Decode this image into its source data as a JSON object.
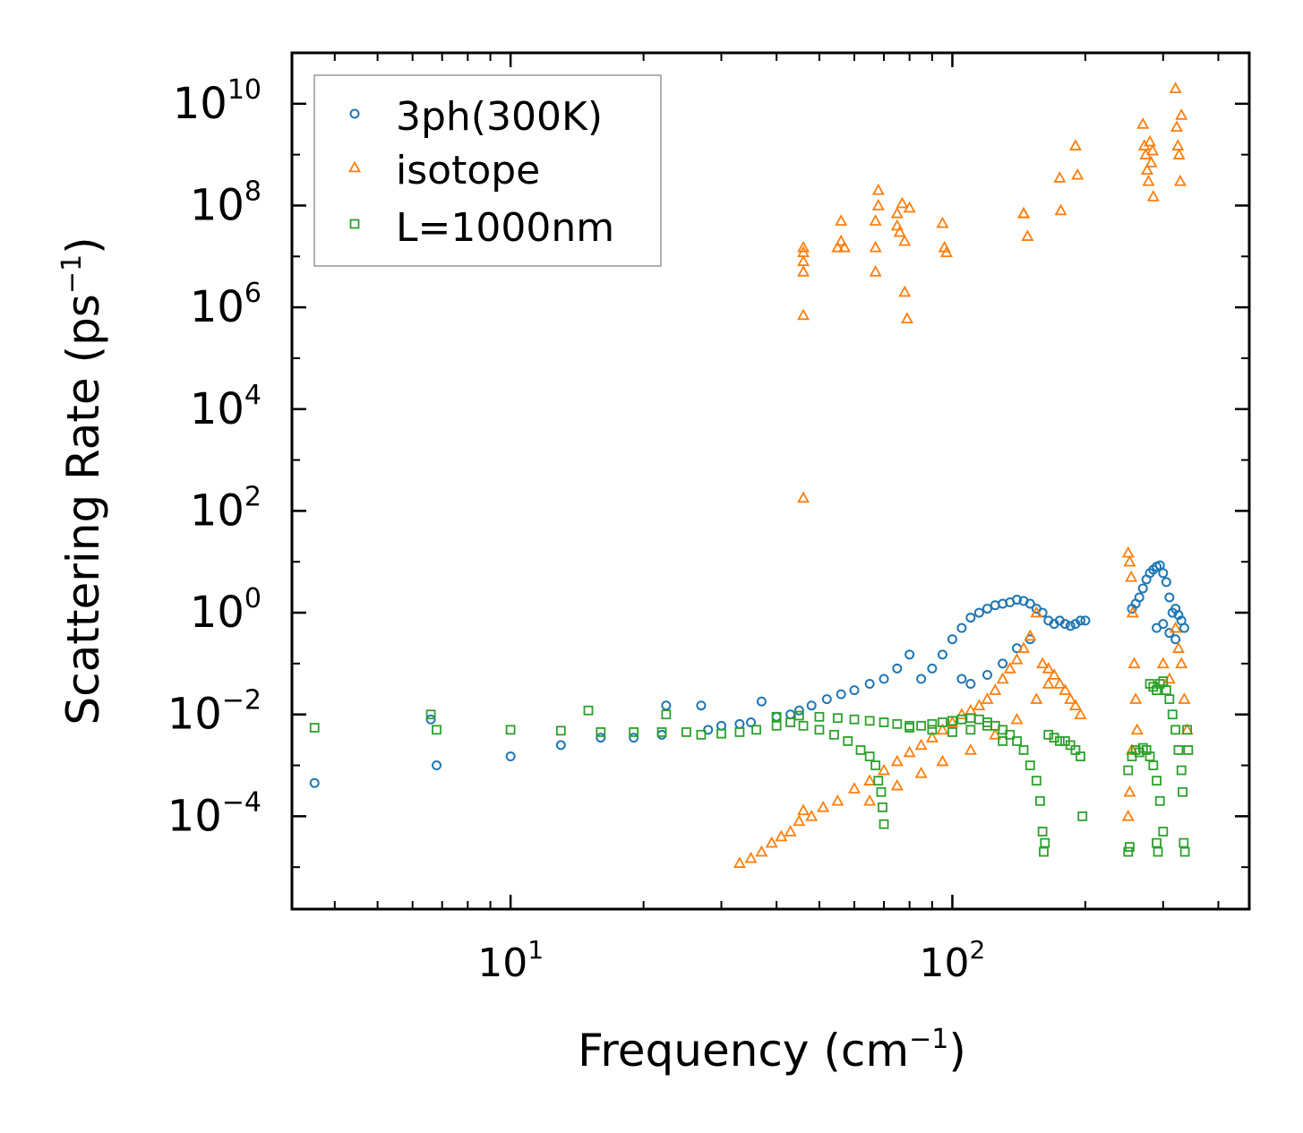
{
  "chart_data": {
    "type": "scatter",
    "xscale": "log",
    "yscale": "log",
    "xlim": [
      3.2,
      470
    ],
    "ylim": [
      1.5e-06,
      100000000000
    ],
    "xlabel": "Frequency (cm",
    "xlabel_sup": "−1",
    "xlabel_end": ")",
    "ylabel": "Scattering Rate (ps",
    "ylabel_sup": "−1",
    "ylabel_end": ")",
    "legend_position": "top-left",
    "x_ticks": [
      {
        "value": 10,
        "base": "10",
        "exp": "1"
      },
      {
        "value": 100,
        "base": "10",
        "exp": "2"
      }
    ],
    "y_ticks": [
      {
        "value": 0.0001,
        "base": "10",
        "exp": "−4"
      },
      {
        "value": 0.01,
        "base": "10",
        "exp": "−2"
      },
      {
        "value": 1,
        "base": "10",
        "exp": "0"
      },
      {
        "value": 100,
        "base": "10",
        "exp": "2"
      },
      {
        "value": 10000,
        "base": "10",
        "exp": "4"
      },
      {
        "value": 1000000,
        "base": "10",
        "exp": "6"
      },
      {
        "value": 100000000,
        "base": "10",
        "exp": "8"
      },
      {
        "value": 10000000000,
        "base": "10",
        "exp": "10"
      }
    ],
    "series": [
      {
        "name": "3ph(300K)",
        "marker": "circle",
        "color": "#1f77b4",
        "points": [
          [
            3.6,
            0.00045
          ],
          [
            6.6,
            0.008
          ],
          [
            6.8,
            0.001
          ],
          [
            10,
            0.0015
          ],
          [
            13,
            0.0025
          ],
          [
            16,
            0.0035
          ],
          [
            19,
            0.0035
          ],
          [
            22,
            0.004
          ],
          [
            22.5,
            0.015
          ],
          [
            27,
            0.015
          ],
          [
            28,
            0.005
          ],
          [
            30,
            0.006
          ],
          [
            33,
            0.0065
          ],
          [
            35,
            0.007
          ],
          [
            37,
            0.018
          ],
          [
            40,
            0.009
          ],
          [
            43,
            0.01
          ],
          [
            45,
            0.012
          ],
          [
            48,
            0.015
          ],
          [
            52,
            0.02
          ],
          [
            56,
            0.025
          ],
          [
            60,
            0.03
          ],
          [
            65,
            0.04
          ],
          [
            70,
            0.05
          ],
          [
            75,
            0.08
          ],
          [
            80,
            0.15
          ],
          [
            85,
            0.05
          ],
          [
            90,
            0.08
          ],
          [
            95,
            0.15
          ],
          [
            100,
            0.3
          ],
          [
            105,
            0.5
          ],
          [
            110,
            0.8
          ],
          [
            115,
            1.0
          ],
          [
            120,
            1.2
          ],
          [
            125,
            1.4
          ],
          [
            130,
            1.5
          ],
          [
            135,
            1.6
          ],
          [
            140,
            1.8
          ],
          [
            145,
            1.7
          ],
          [
            150,
            1.5
          ],
          [
            155,
            1.2
          ],
          [
            160,
            1.0
          ],
          [
            165,
            0.7
          ],
          [
            170,
            0.6
          ],
          [
            175,
            0.7
          ],
          [
            180,
            0.6
          ],
          [
            185,
            0.55
          ],
          [
            190,
            0.6
          ],
          [
            195,
            0.7
          ],
          [
            200,
            0.7
          ],
          [
            105,
            0.05
          ],
          [
            110,
            0.04
          ],
          [
            120,
            0.06
          ],
          [
            130,
            0.1
          ],
          [
            140,
            0.2
          ],
          [
            150,
            0.3
          ],
          [
            255,
            1.2
          ],
          [
            260,
            1.5
          ],
          [
            265,
            2.0
          ],
          [
            270,
            3.0
          ],
          [
            275,
            4.5
          ],
          [
            280,
            6.0
          ],
          [
            285,
            7.0
          ],
          [
            290,
            8.0
          ],
          [
            295,
            8.5
          ],
          [
            300,
            6.0
          ],
          [
            305,
            4.0
          ],
          [
            310,
            2.0
          ],
          [
            315,
            1.0
          ],
          [
            320,
            1.2
          ],
          [
            325,
            0.9
          ],
          [
            330,
            0.7
          ],
          [
            335,
            0.5
          ],
          [
            290,
            0.5
          ],
          [
            300,
            0.6
          ],
          [
            310,
            0.4
          ],
          [
            320,
            0.3
          ]
        ]
      },
      {
        "name": "isotope",
        "marker": "triangle",
        "color": "#ff7f0e",
        "points": [
          [
            33,
            1.2e-05
          ],
          [
            35,
            1.5e-05
          ],
          [
            37,
            2e-05
          ],
          [
            39,
            3e-05
          ],
          [
            41,
            4e-05
          ],
          [
            43,
            5e-05
          ],
          [
            45,
            8e-05
          ],
          [
            48,
            0.0001
          ],
          [
            51,
            0.00015
          ],
          [
            55,
            0.0002
          ],
          [
            60,
            0.00035
          ],
          [
            65,
            0.0005
          ],
          [
            70,
            0.0008
          ],
          [
            75,
            0.0012
          ],
          [
            80,
            0.0018
          ],
          [
            85,
            0.0025
          ],
          [
            90,
            0.0035
          ],
          [
            95,
            0.005
          ],
          [
            100,
            0.007
          ],
          [
            105,
            0.01
          ],
          [
            110,
            0.012
          ],
          [
            115,
            0.015
          ],
          [
            120,
            0.02
          ],
          [
            125,
            0.03
          ],
          [
            130,
            0.05
          ],
          [
            135,
            0.08
          ],
          [
            140,
            0.12
          ],
          [
            145,
            0.2
          ],
          [
            150,
            0.35
          ],
          [
            155,
            1.0
          ],
          [
            160,
            0.1
          ],
          [
            165,
            0.08
          ],
          [
            170,
            0.06
          ],
          [
            175,
            0.04
          ],
          [
            180,
            0.03
          ],
          [
            185,
            0.02
          ],
          [
            190,
            0.015
          ],
          [
            195,
            0.01
          ],
          [
            65,
            0.0002
          ],
          [
            75,
            0.0004
          ],
          [
            85,
            0.0007
          ],
          [
            95,
            0.0012
          ],
          [
            110,
            0.002
          ],
          [
            125,
            0.004
          ],
          [
            140,
            0.008
          ],
          [
            155,
            0.02
          ],
          [
            165,
            0.04
          ],
          [
            46,
            0.00013
          ],
          [
            250,
            15.0
          ],
          [
            252,
            10.0
          ],
          [
            254,
            5.0
          ],
          [
            256,
            1.0
          ],
          [
            258,
            0.1
          ],
          [
            260,
            0.02
          ],
          [
            262,
            0.005
          ],
          [
            250,
            0.0001
          ],
          [
            252,
            0.0003
          ],
          [
            255,
            0.002
          ],
          [
            300,
            0.1
          ],
          [
            310,
            0.05
          ],
          [
            320,
            0.5
          ],
          [
            325,
            0.2
          ],
          [
            330,
            0.1
          ],
          [
            335,
            0.02
          ],
          [
            340,
            0.005
          ],
          [
            46,
            180
          ],
          [
            46,
            700000
          ],
          [
            46,
            5000000
          ],
          [
            46,
            8000000
          ],
          [
            46,
            12000000
          ],
          [
            46,
            15000000
          ],
          [
            55,
            15000000
          ],
          [
            56,
            20000000
          ],
          [
            56,
            50000000
          ],
          [
            57,
            15000000
          ],
          [
            67,
            5000000
          ],
          [
            67,
            15000000
          ],
          [
            67,
            50000000
          ],
          [
            68,
            100000000
          ],
          [
            68,
            200000000
          ],
          [
            75,
            40000000
          ],
          [
            75,
            70000000
          ],
          [
            76,
            30000000
          ],
          [
            77,
            110000000
          ],
          [
            78,
            20000000
          ],
          [
            78,
            2000000
          ],
          [
            79,
            600000
          ],
          [
            80,
            90000000
          ],
          [
            95,
            45000000
          ],
          [
            96,
            15000000
          ],
          [
            97,
            12000000
          ],
          [
            145,
            70000000
          ],
          [
            148,
            25000000
          ],
          [
            145,
            70000000
          ],
          [
            175,
            350000000
          ],
          [
            176,
            80000000
          ],
          [
            190,
            1500000000
          ],
          [
            192,
            400000000
          ],
          [
            270,
            4000000000
          ],
          [
            272,
            1500000000
          ],
          [
            274,
            1000000000
          ],
          [
            276,
            500000000
          ],
          [
            278,
            300000000
          ],
          [
            280,
            1800000000
          ],
          [
            282,
            700000000
          ],
          [
            284,
            1200000000
          ],
          [
            285,
            150000000
          ],
          [
            320,
            20000000000
          ],
          [
            322,
            3500000000
          ],
          [
            324,
            1500000000
          ],
          [
            326,
            1000000000
          ],
          [
            328,
            300000000
          ],
          [
            330,
            6000000000
          ]
        ]
      },
      {
        "name": "L=1000nm",
        "marker": "square",
        "color": "#2ca02c",
        "points": [
          [
            3.6,
            0.0055
          ],
          [
            6.6,
            0.01
          ],
          [
            6.8,
            0.005
          ],
          [
            10,
            0.005
          ],
          [
            13,
            0.0048
          ],
          [
            15,
            0.012
          ],
          [
            16,
            0.0045
          ],
          [
            19,
            0.0045
          ],
          [
            22,
            0.0045
          ],
          [
            22.5,
            0.01
          ],
          [
            25,
            0.0045
          ],
          [
            27,
            0.004
          ],
          [
            30,
            0.0042
          ],
          [
            33,
            0.0045
          ],
          [
            36,
            0.005
          ],
          [
            40,
            0.006
          ],
          [
            43,
            0.007
          ],
          [
            46,
            0.006
          ],
          [
            50,
            0.005
          ],
          [
            54,
            0.004
          ],
          [
            58,
            0.003
          ],
          [
            62,
            0.002
          ],
          [
            65,
            0.0015
          ],
          [
            67,
            0.001
          ],
          [
            68,
            0.0005
          ],
          [
            69,
            0.0003
          ],
          [
            69.5,
            0.00015
          ],
          [
            70,
            7e-05
          ],
          [
            40,
            0.009
          ],
          [
            45,
            0.0095
          ],
          [
            50,
            0.009
          ],
          [
            55,
            0.0085
          ],
          [
            60,
            0.008
          ],
          [
            65,
            0.0075
          ],
          [
            70,
            0.007
          ],
          [
            75,
            0.0065
          ],
          [
            80,
            0.006
          ],
          [
            85,
            0.006
          ],
          [
            90,
            0.0065
          ],
          [
            95,
            0.007
          ],
          [
            100,
            0.0075
          ],
          [
            105,
            0.008
          ],
          [
            110,
            0.0085
          ],
          [
            115,
            0.008
          ],
          [
            120,
            0.007
          ],
          [
            125,
            0.006
          ],
          [
            130,
            0.005
          ],
          [
            135,
            0.004
          ],
          [
            140,
            0.003
          ],
          [
            145,
            0.002
          ],
          [
            150,
            0.001
          ],
          [
            155,
            0.0005
          ],
          [
            158,
            0.0002
          ],
          [
            160,
            5e-05
          ],
          [
            161,
            2e-05
          ],
          [
            162,
            3e-05
          ],
          [
            165,
            0.004
          ],
          [
            170,
            0.0035
          ],
          [
            175,
            0.003
          ],
          [
            180,
            0.003
          ],
          [
            185,
            0.0025
          ],
          [
            190,
            0.002
          ],
          [
            195,
            0.0015
          ],
          [
            197,
            0.0001
          ],
          [
            80,
            0.0055
          ],
          [
            90,
            0.005
          ],
          [
            100,
            0.0045
          ],
          [
            110,
            0.005
          ],
          [
            120,
            0.006
          ],
          [
            130,
            0.003
          ],
          [
            250,
            0.0008
          ],
          [
            255,
            0.0015
          ],
          [
            260,
            0.002
          ],
          [
            265,
            0.0018
          ],
          [
            270,
            0.0022
          ],
          [
            275,
            0.002
          ],
          [
            280,
            0.0015
          ],
          [
            285,
            0.001
          ],
          [
            290,
            0.0005
          ],
          [
            295,
            0.0002
          ],
          [
            300,
            5e-05
          ],
          [
            280,
            0.04
          ],
          [
            285,
            0.035
          ],
          [
            290,
            0.03
          ],
          [
            295,
            0.04
          ],
          [
            300,
            0.045
          ],
          [
            305,
            0.03
          ],
          [
            310,
            0.02
          ],
          [
            315,
            0.01
          ],
          [
            320,
            0.005
          ],
          [
            325,
            0.002
          ],
          [
            330,
            0.0008
          ],
          [
            332,
            0.0003
          ],
          [
            334,
            3e-05
          ],
          [
            336,
            2e-05
          ],
          [
            250,
            2e-05
          ],
          [
            252,
            2.5e-05
          ],
          [
            290,
            3e-05
          ],
          [
            292,
            2e-05
          ],
          [
            340,
            0.005
          ],
          [
            342,
            0.002
          ]
        ]
      }
    ]
  }
}
